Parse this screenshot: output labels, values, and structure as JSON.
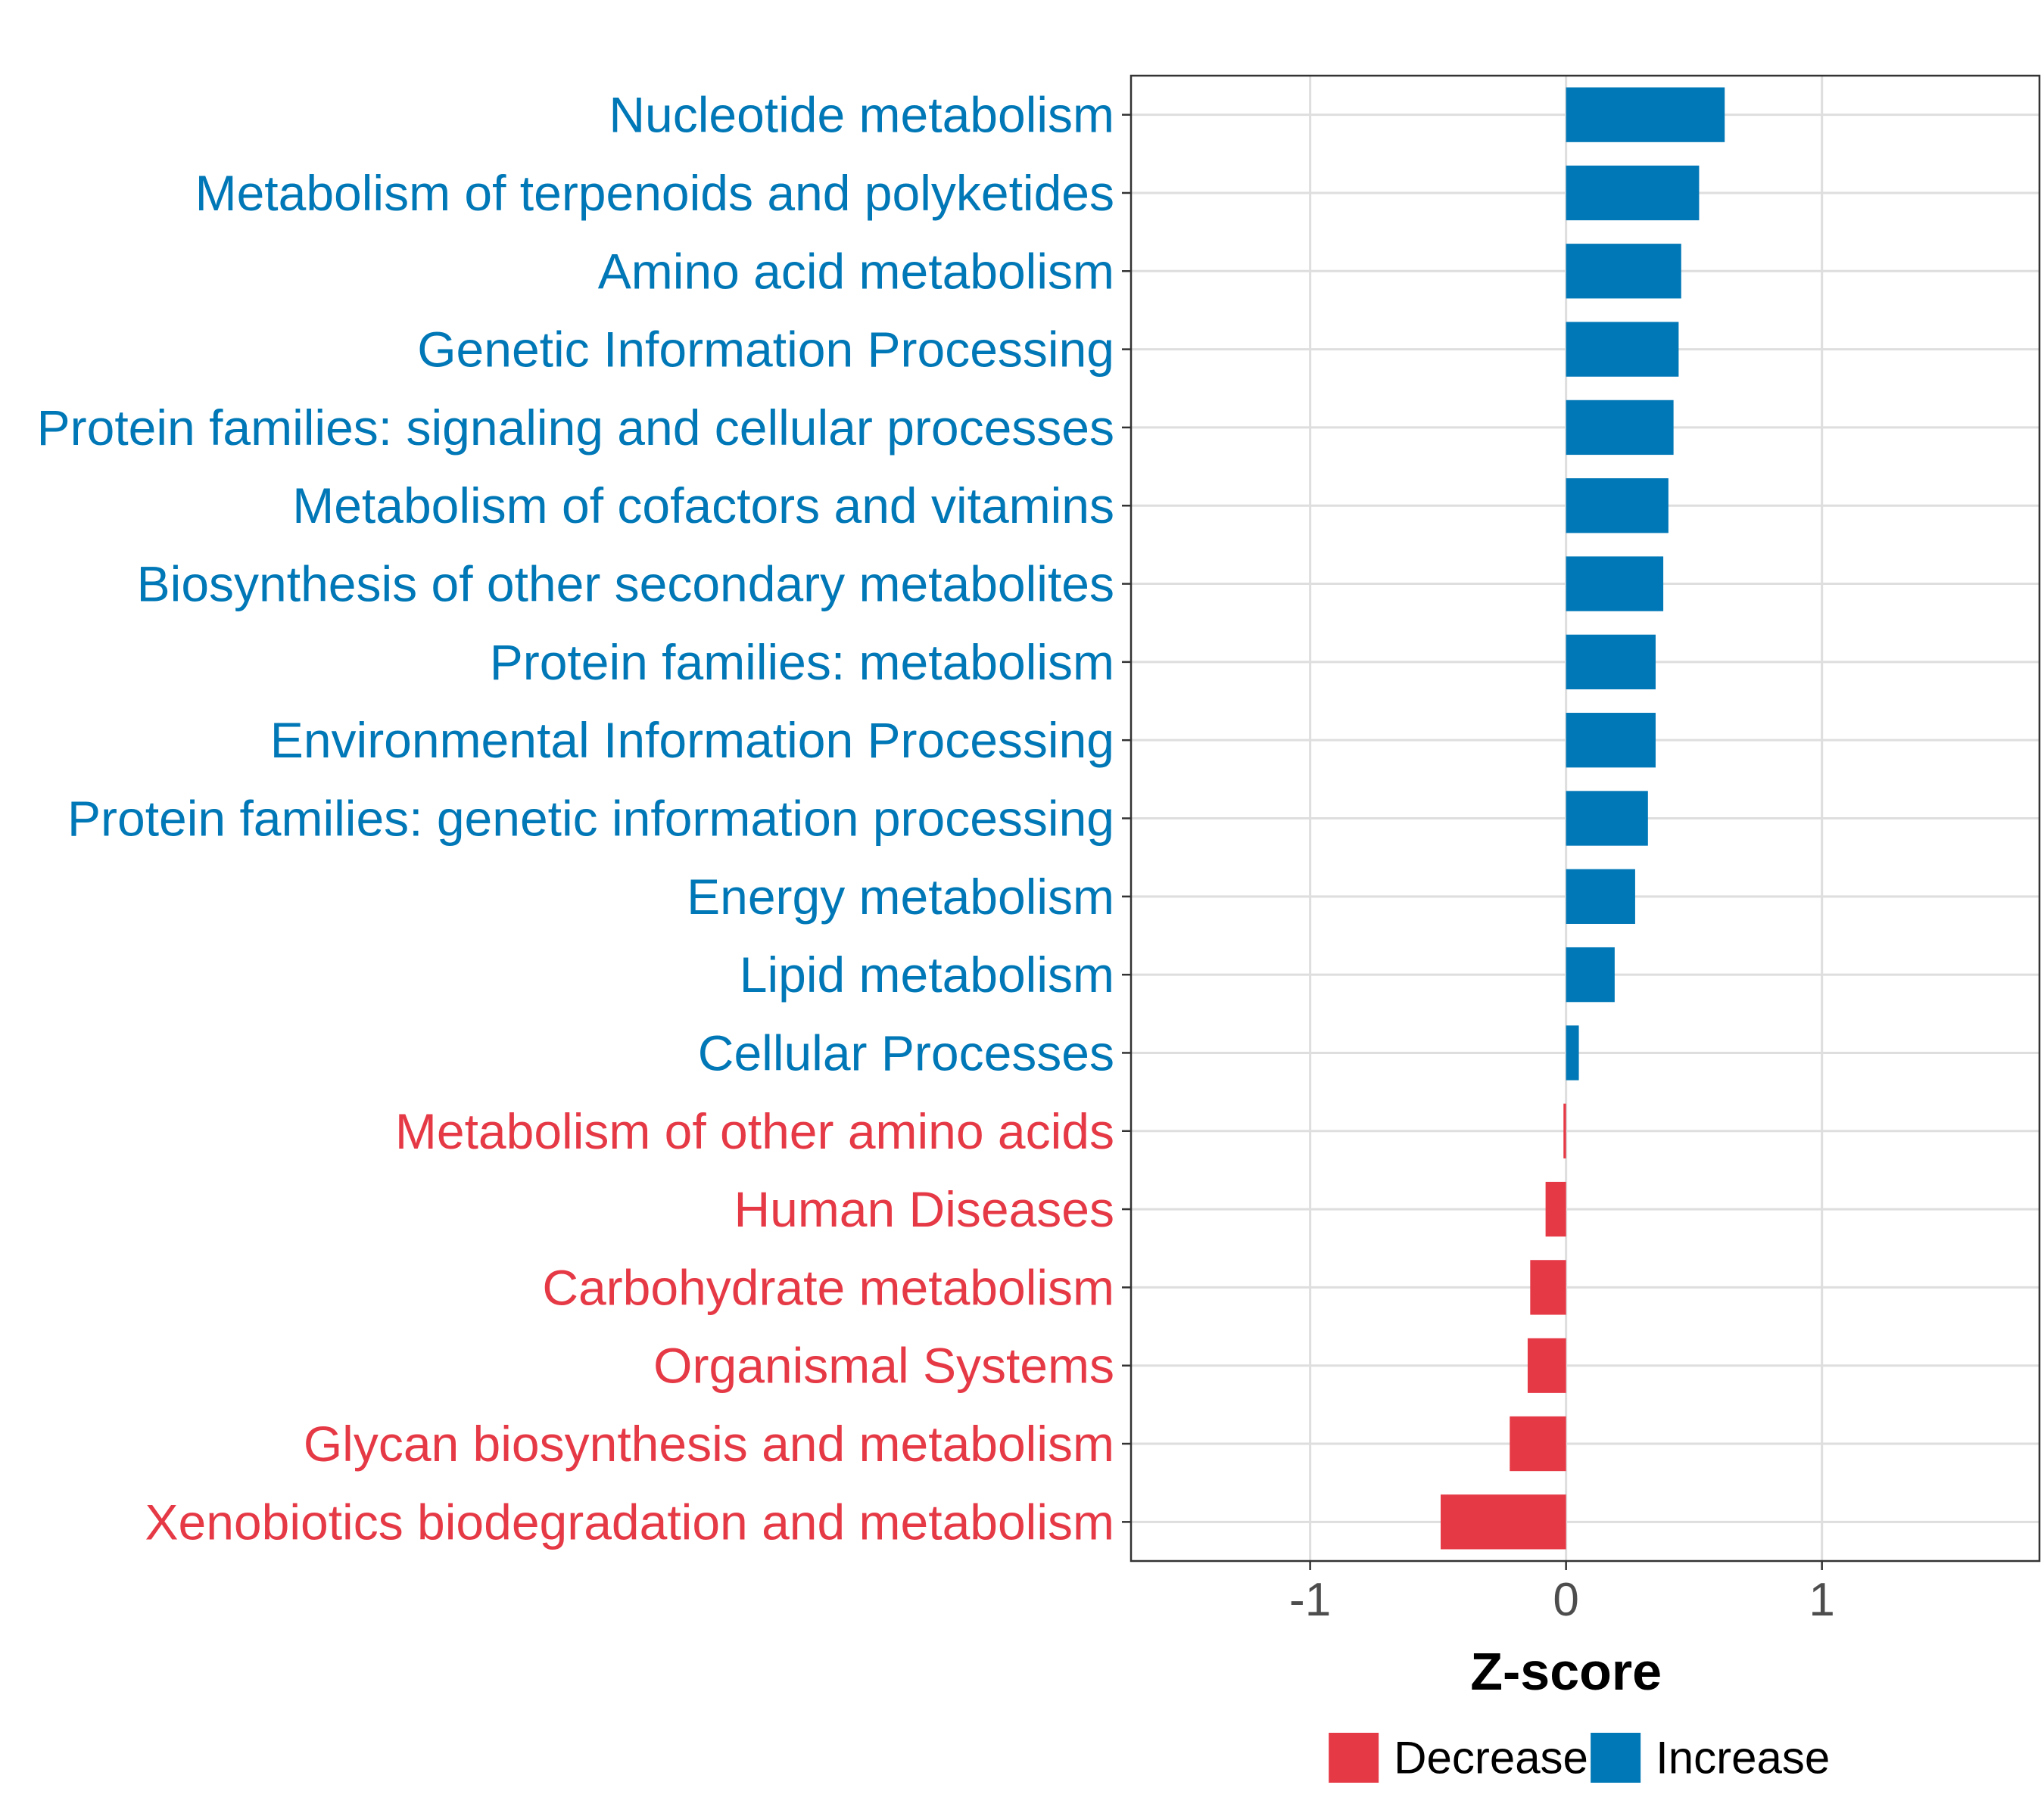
{
  "chart_data": {
    "type": "bar",
    "orientation": "horizontal",
    "xlabel": "Z-score",
    "ylabel": "",
    "xlim": [
      -1.7,
      1.85
    ],
    "xticks": [
      -1,
      0,
      1
    ],
    "xtick_labels": [
      "-1",
      "0",
      "1"
    ],
    "grid": true,
    "categories": [
      "Nucleotide metabolism",
      "Metabolism of terpenoids and polyketides",
      "Amino acid metabolism",
      "Genetic Information Processing",
      "Protein families: signaling and cellular processes",
      "Metabolism of cofactors and vitamins",
      "Biosynthesis of other secondary metabolites",
      "Protein families: metabolism",
      "Environmental Information Processing",
      "Protein families: genetic information processing",
      "Energy metabolism",
      "Lipid metabolism",
      "Cellular Processes",
      "Metabolism of other amino acids",
      "Human Diseases",
      "Carbohydrate metabolism",
      "Organismal Systems",
      "Glycan biosynthesis and metabolism",
      "Xenobiotics biodegradation and metabolism"
    ],
    "values": [
      0.62,
      0.52,
      0.45,
      0.44,
      0.42,
      0.4,
      0.38,
      0.35,
      0.35,
      0.32,
      0.27,
      0.19,
      0.05,
      -0.01,
      -0.08,
      -0.14,
      -0.15,
      -0.22,
      -0.49
    ],
    "legend": {
      "position": "bottom",
      "entries": [
        {
          "label": "Decrease",
          "color": "#e63946"
        },
        {
          "label": "Increase",
          "color": "#0077b6"
        }
      ]
    },
    "colors": {
      "increase": "#0077b6",
      "decrease": "#e63946"
    }
  }
}
